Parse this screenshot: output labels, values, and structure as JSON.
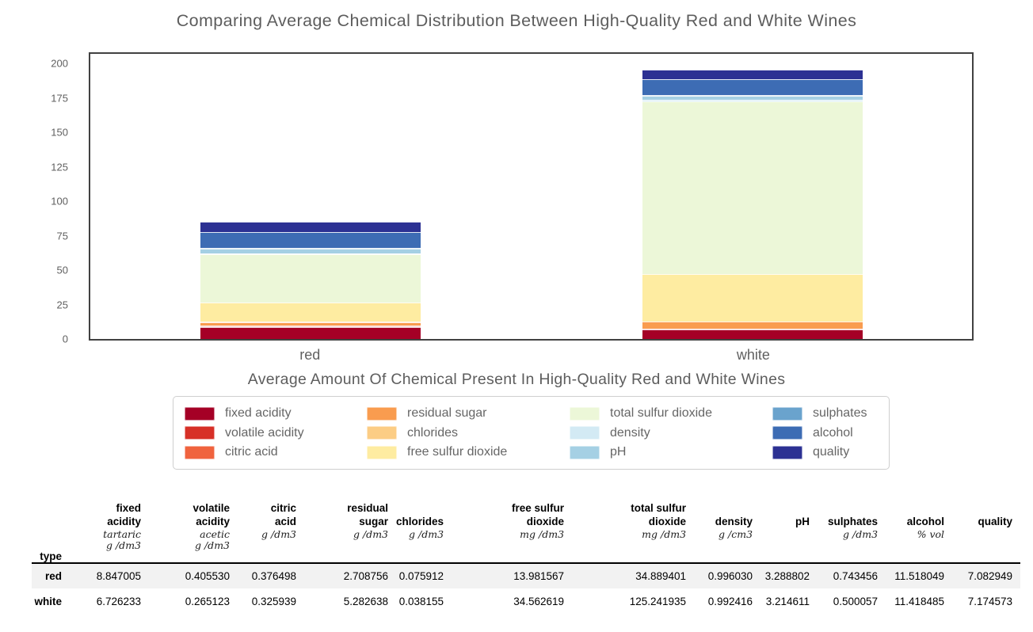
{
  "chart_data": {
    "type": "bar",
    "stacked": true,
    "title": "Comparing Average Chemical Distribution Between High-Quality Red and White Wines",
    "legend_title": "Average Amount Of Chemical Present In High-Quality Red and White Wines",
    "legend_position": "bottom",
    "categories": [
      "red",
      "white"
    ],
    "series": [
      {
        "name": "fixed acidity",
        "color": "#a50026",
        "values": [
          8.847005,
          6.726233
        ]
      },
      {
        "name": "volatile acidity",
        "color": "#d73027",
        "values": [
          0.40553,
          0.265123
        ]
      },
      {
        "name": "citric acid",
        "color": "#f0633e",
        "values": [
          0.376498,
          0.325939
        ]
      },
      {
        "name": "residual sugar",
        "color": "#f99c4f",
        "values": [
          2.708756,
          5.282638
        ]
      },
      {
        "name": "chlorides",
        "color": "#fccd85",
        "values": [
          0.075912,
          0.038155
        ]
      },
      {
        "name": "free sulfur dioxide",
        "color": "#feeca1",
        "values": [
          13.981567,
          34.562619
        ]
      },
      {
        "name": "total sulfur dioxide",
        "color": "#ecf7d8",
        "values": [
          34.889401,
          125.241935
        ]
      },
      {
        "name": "density",
        "color": "#d3eaf4",
        "values": [
          0.99603,
          0.992416
        ]
      },
      {
        "name": "pH",
        "color": "#a5d0e4",
        "values": [
          3.288802,
          3.214611
        ]
      },
      {
        "name": "sulphates",
        "color": "#6aa3cd",
        "values": [
          0.743456,
          0.500057
        ]
      },
      {
        "name": "alcohol",
        "color": "#3d6cb4",
        "values": [
          11.518049,
          11.418485
        ]
      },
      {
        "name": "quality",
        "color": "#2c3193",
        "values": [
          7.082949,
          7.174573
        ]
      }
    ],
    "xlabel": "",
    "ylabel": "",
    "ylim": [
      0,
      207
    ],
    "yticks": [
      0,
      25,
      50,
      75,
      100,
      125,
      150,
      175,
      200
    ],
    "grid": false
  },
  "table": {
    "index_label": "type",
    "columns": [
      {
        "label": "fixed\nacidity",
        "unit": "tartaric\ng /dm3"
      },
      {
        "label": "volatile\nacidity",
        "unit": "acetic\ng /dm3"
      },
      {
        "label": "citric\nacid",
        "unit": "g /dm3"
      },
      {
        "label": "residual\nsugar",
        "unit": "g /dm3"
      },
      {
        "label": "chlorides",
        "unit": "g /dm3"
      },
      {
        "label": "free sulfur\ndioxide",
        "unit": "mg /dm3"
      },
      {
        "label": "total sulfur\ndioxide",
        "unit": "mg /dm3"
      },
      {
        "label": "density",
        "unit": "g /cm3"
      },
      {
        "label": "pH",
        "unit": ""
      },
      {
        "label": "sulphates",
        "unit": "g /dm3"
      },
      {
        "label": "alcohol",
        "unit": "% vol"
      },
      {
        "label": "quality",
        "unit": ""
      }
    ],
    "rows": [
      {
        "label": "red",
        "values": [
          "8.847005",
          "0.405530",
          "0.376498",
          "2.708756",
          "0.075912",
          "13.981567",
          "34.889401",
          "0.996030",
          "3.288802",
          "0.743456",
          "11.518049",
          "7.082949"
        ]
      },
      {
        "label": "white",
        "values": [
          "6.726233",
          "0.265123",
          "0.325939",
          "5.282638",
          "0.038155",
          "34.562619",
          "125.241935",
          "0.992416",
          "3.214611",
          "0.500057",
          "11.418485",
          "7.174573"
        ]
      }
    ]
  }
}
